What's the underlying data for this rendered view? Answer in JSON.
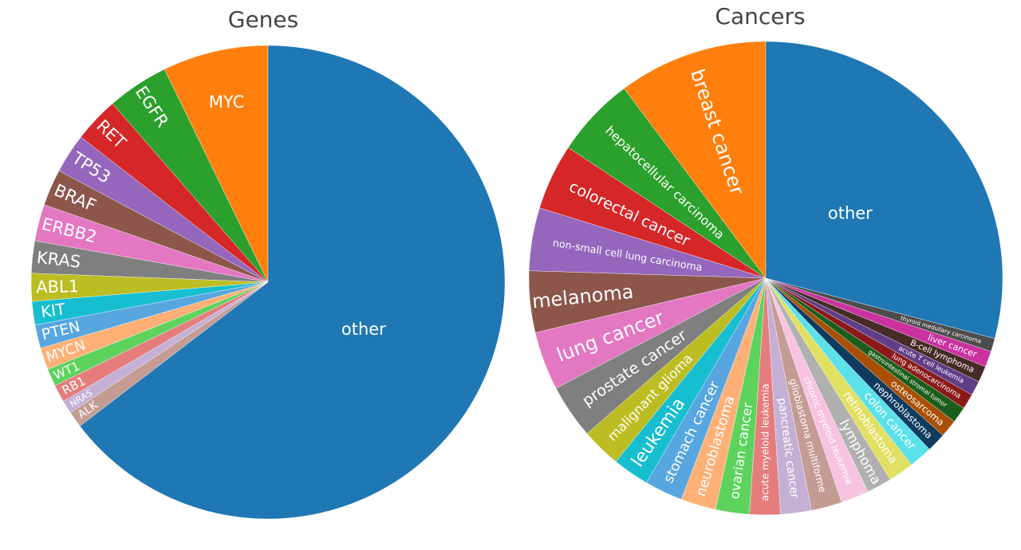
{
  "chart_data": [
    {
      "type": "pie",
      "title": "Genes",
      "direction": "counterclockwise",
      "start": "top",
      "labels": [
        "MYC",
        "EGFR",
        "RET",
        "TP53",
        "BRAF",
        "ERBB2",
        "KRAS",
        "ABL1",
        "KIT",
        "PTEN",
        "MYCN",
        "WT1",
        "RB1",
        "NRAS",
        "ALK",
        "other"
      ],
      "values": [
        7.2,
        4.2,
        3.1,
        2.7,
        2.5,
        2.5,
        2.2,
        1.9,
        1.6,
        1.6,
        1.5,
        1.2,
        1.2,
        0.9,
        1.1,
        64.6
      ],
      "colors": [
        "#ff7f0e",
        "#2ca02c",
        "#d62728",
        "#9467bd",
        "#8c564b",
        "#e377c2",
        "#7f7f7f",
        "#bcbd22",
        "#17becf",
        "#57a6e0",
        "#ffb077",
        "#5dd35d",
        "#e57d7d",
        "#c5b0d5",
        "#c49c94",
        "#1f77b4"
      ],
      "horizontal_labels": [
        "MYC",
        "other"
      ]
    },
    {
      "type": "pie",
      "title": "Cancers",
      "direction": "counterclockwise",
      "start": "top",
      "labels": [
        "breast cancer",
        "hepatocellular carcinoma",
        "colorectal cancer",
        "non-small cell lung carcinoma",
        "melanoma",
        "lung cancer",
        "prostate cancer",
        "malignant glioma",
        "leukemia",
        "stomach cancer",
        "neuroblastoma",
        "ovarian cancer",
        "acute myeloid leukemia",
        "pancreatic cancer",
        "glioblastoma multiforme",
        "chronic myeloid leukemia",
        "lymphoma",
        "retinoblastoma",
        "colon cancer",
        "nephroblastoma",
        "osteosarcoma",
        "gastrointestinal stromal tumor",
        "lung adenocarcinoma",
        "acute T cell leukemia",
        "B-cell lymphoma",
        "liver cancer",
        "thyroid medullary carcinoma",
        "other"
      ],
      "values": [
        10.2,
        5.5,
        4.5,
        4.3,
        4.2,
        4.0,
        3.7,
        2.7,
        2.5,
        2.6,
        2.4,
        2.3,
        2.1,
        2.1,
        2.1,
        1.9,
        1.7,
        1.75,
        1.6,
        1.3,
        1.2,
        1.1,
        1.05,
        1.0,
        1.1,
        1.1,
        0.9,
        29.1
      ],
      "colors": [
        "#ff7f0e",
        "#2ca02c",
        "#d62728",
        "#9467bd",
        "#8c564b",
        "#e377c2",
        "#7f7f7f",
        "#bcbd22",
        "#17becf",
        "#57a6e0",
        "#ffb077",
        "#5dd35d",
        "#e57d7d",
        "#c5b0d5",
        "#c49c94",
        "#f7c3e0",
        "#b0b0b0",
        "#e2e062",
        "#5ce1ea",
        "#0f3b5f",
        "#a84f04",
        "#1b5e1b",
        "#8a1a1a",
        "#5f3d87",
        "#472b27",
        "#c9329f",
        "#4c4c4c",
        "#1f77b4"
      ],
      "horizontal_labels": [
        "other"
      ]
    }
  ]
}
